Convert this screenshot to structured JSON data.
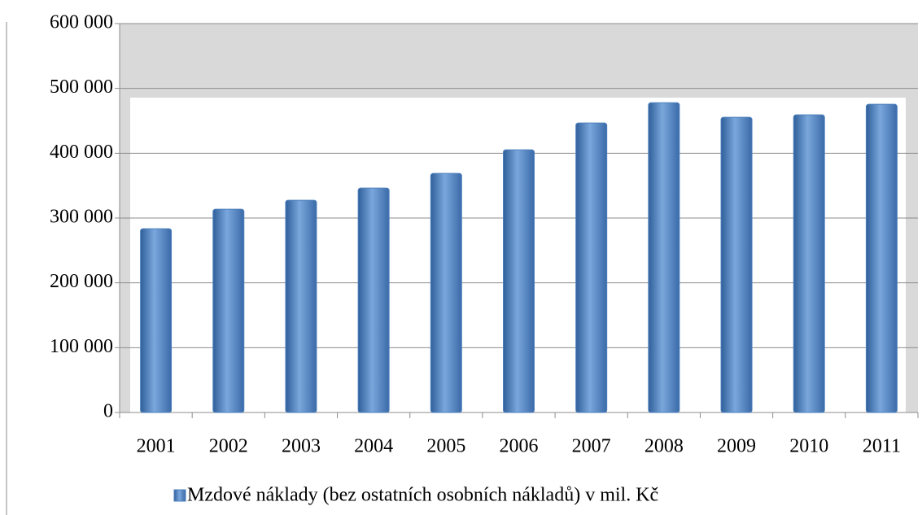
{
  "chart_data": {
    "type": "bar",
    "categories": [
      "2001",
      "2002",
      "2003",
      "2004",
      "2005",
      "2006",
      "2007",
      "2008",
      "2009",
      "2010",
      "2011"
    ],
    "series": [
      {
        "name": "Mzdové náklady (bez ostatních osobních nákladů) v mil. Kč",
        "color": "#4f81bd",
        "values": [
          283600,
          313700,
          327500,
          346300,
          368900,
          405300,
          446700,
          478000,
          455500,
          459200,
          475500
        ]
      }
    ],
    "ylim": [
      0,
      600000
    ],
    "yticks": [
      {
        "value": 0,
        "label": "0"
      },
      {
        "value": 100000,
        "label": "100 000"
      },
      {
        "value": 200000,
        "label": "200 000"
      },
      {
        "value": 300000,
        "label": "300 000"
      },
      {
        "value": 400000,
        "label": "400 000"
      },
      {
        "value": 500000,
        "label": "500 000"
      },
      {
        "value": 600000,
        "label": "600 000"
      }
    ],
    "grid": true,
    "legend": "bottom"
  }
}
